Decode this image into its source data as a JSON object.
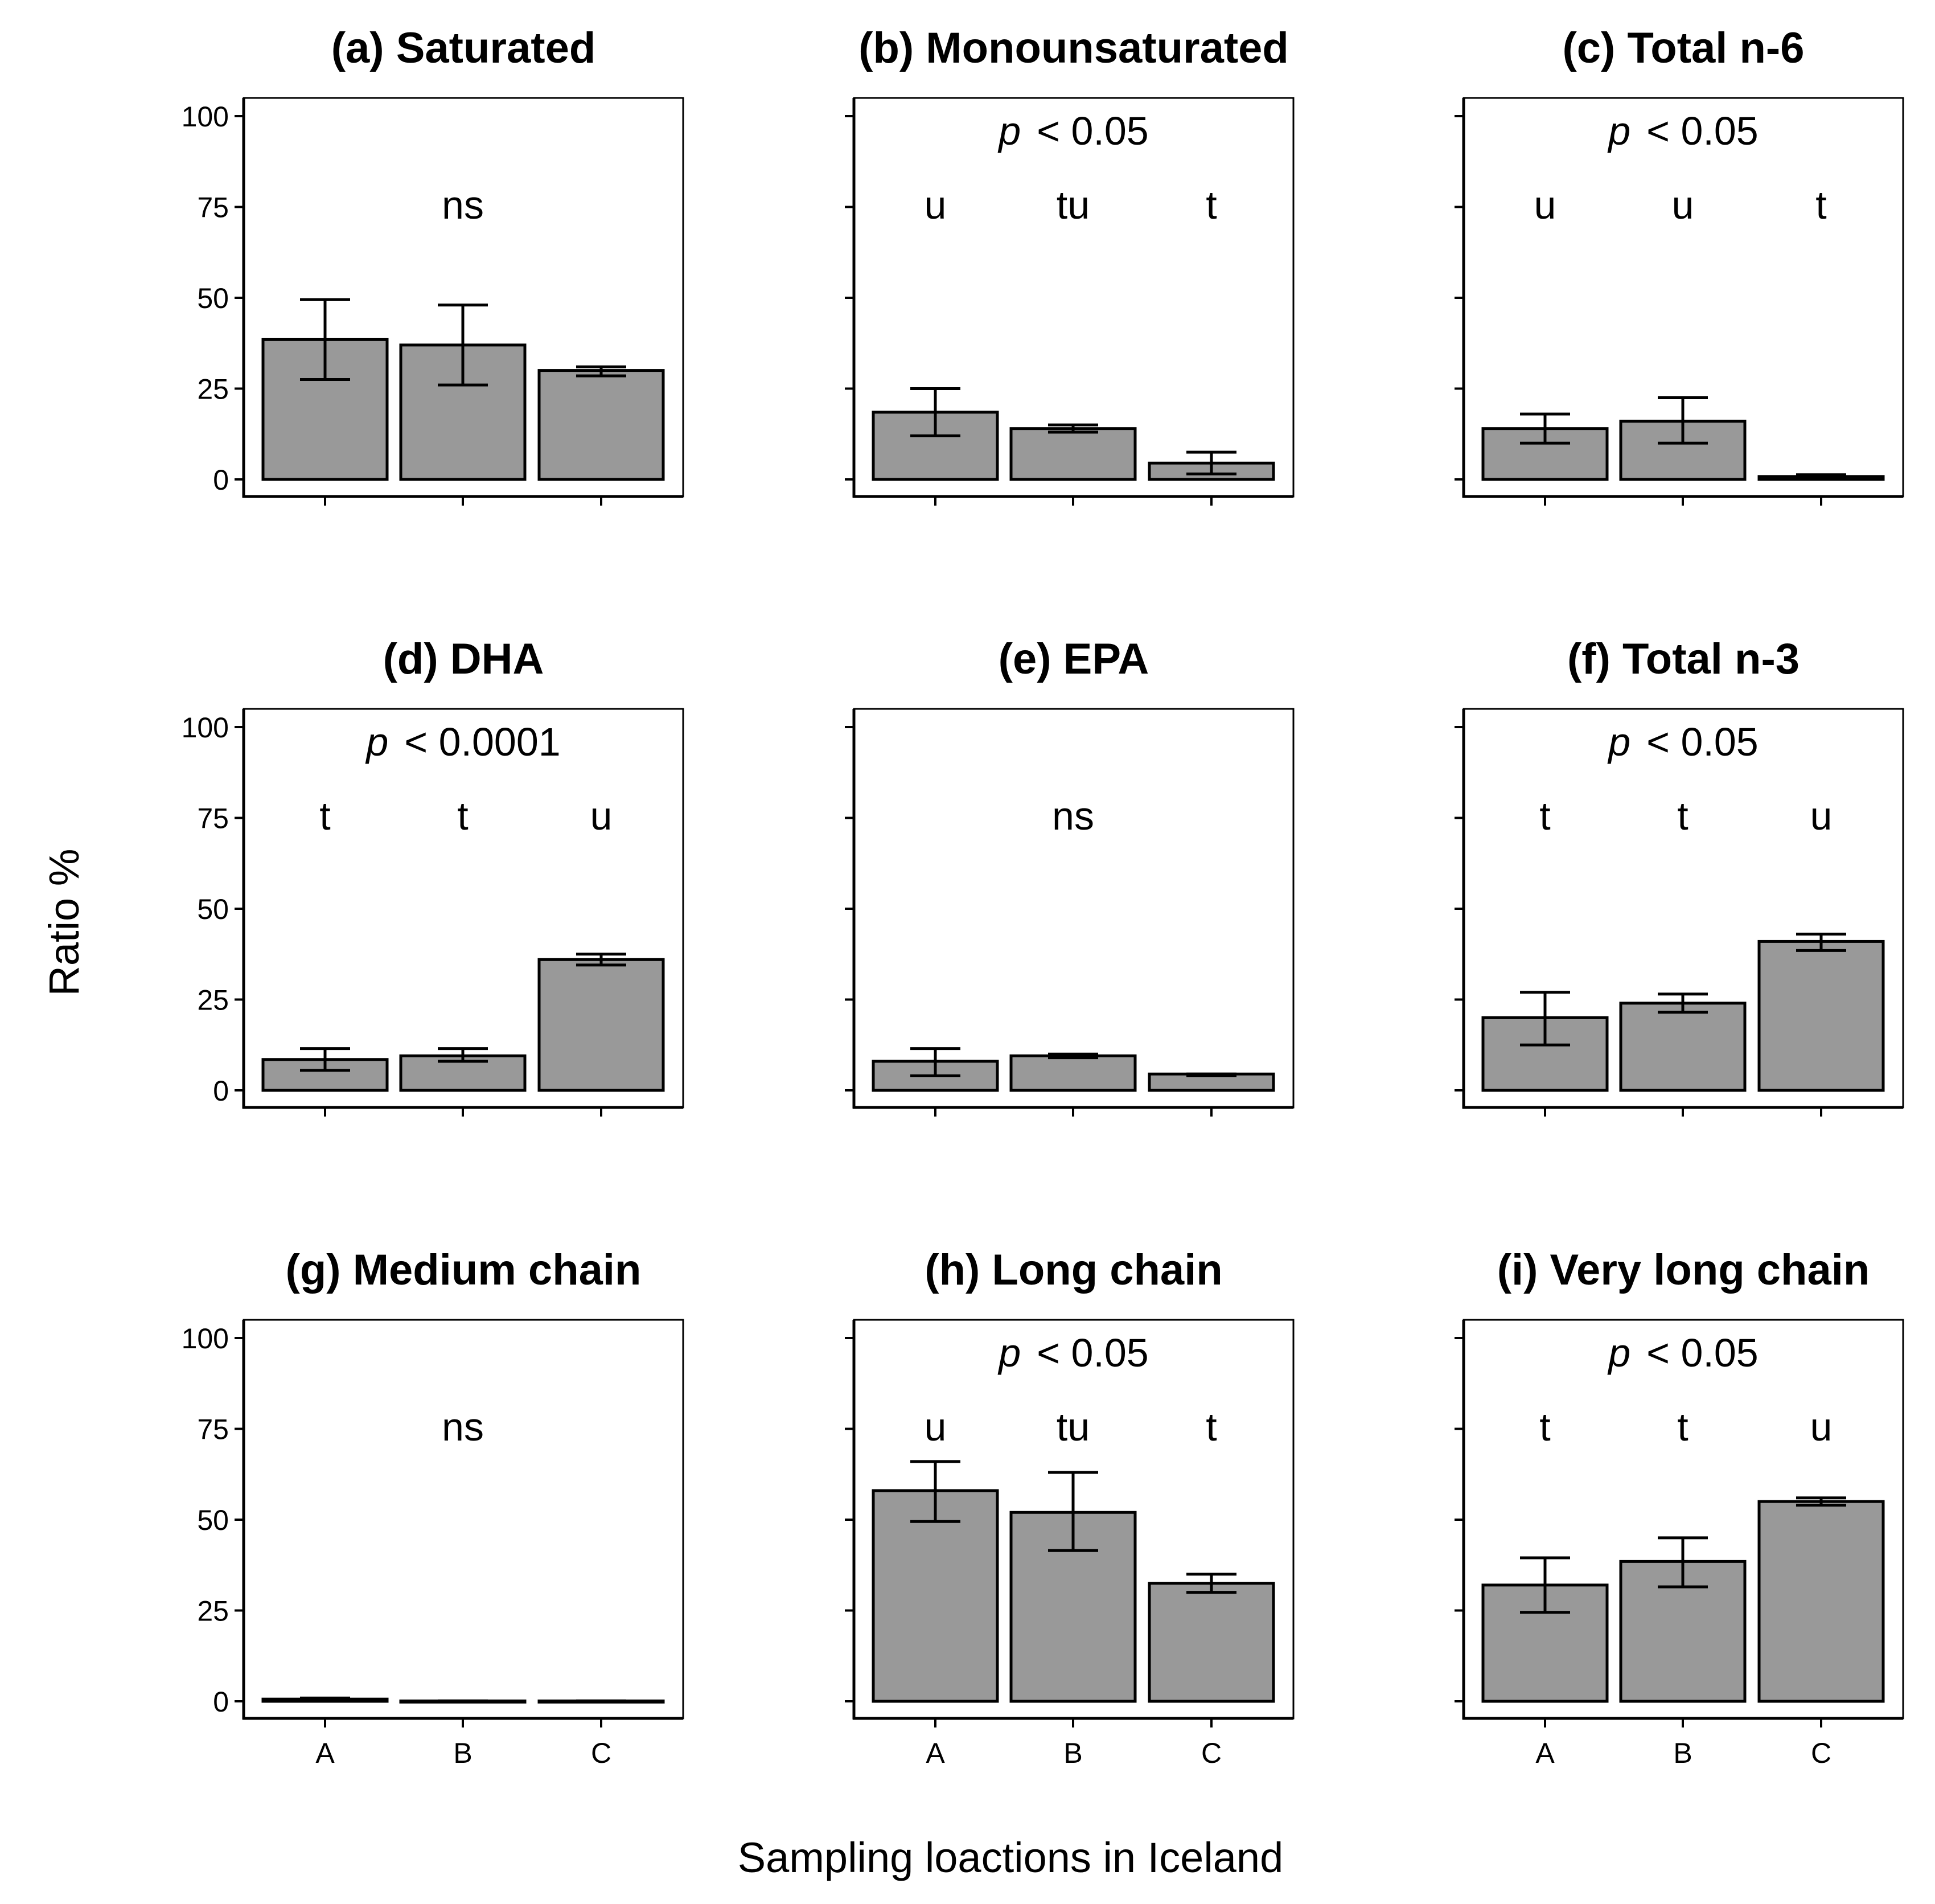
{
  "figure": {
    "ylabel": "Ratio %",
    "xlabel": "Sampling loactions in Iceland"
  },
  "chart_data": [
    {
      "type": "bar",
      "title": "(a) Saturated",
      "categories": [
        "A",
        "B",
        "C"
      ],
      "values": [
        38.5,
        37,
        30
      ],
      "error": [
        [
          27.5,
          49.5
        ],
        [
          26,
          48
        ],
        [
          28.5,
          31
        ]
      ],
      "ylim": [
        0,
        100
      ],
      "yticks": [
        "0",
        "25",
        "50",
        "75",
        "100"
      ],
      "annotation": {
        "p_symbol": "",
        "p_text": ""
      },
      "letters": {
        "type": "ns",
        "text": "ns"
      }
    },
    {
      "type": "bar",
      "title": "(b)  Monounsaturated",
      "categories": [
        "A",
        "B",
        "C"
      ],
      "values": [
        18.5,
        14,
        4.5
      ],
      "error": [
        [
          12,
          25
        ],
        [
          13,
          15
        ],
        [
          1.5,
          7.5
        ]
      ],
      "ylim": [
        0,
        100
      ],
      "yticks": [
        "0",
        "25",
        "50",
        "75",
        "100"
      ],
      "annotation": {
        "p_symbol": "p",
        "p_text": "< 0.05"
      },
      "letters": {
        "type": "groups",
        "items": [
          "u",
          "tu",
          "t"
        ]
      }
    },
    {
      "type": "bar",
      "title": "(c) Total n-6",
      "categories": [
        "A",
        "B",
        "C"
      ],
      "values": [
        14,
        16,
        0.8
      ],
      "error": [
        [
          10,
          18
        ],
        [
          10,
          22.5
        ],
        [
          0.3,
          1.3
        ]
      ],
      "ylim": [
        0,
        100
      ],
      "yticks": [
        "0",
        "25",
        "50",
        "75",
        "100"
      ],
      "annotation": {
        "p_symbol": "p",
        "p_text": "< 0.05"
      },
      "letters": {
        "type": "groups",
        "items": [
          "u",
          "u",
          "t"
        ]
      }
    },
    {
      "type": "bar",
      "title": "(d) DHA",
      "categories": [
        "A",
        "B",
        "C"
      ],
      "values": [
        8.5,
        9.5,
        36
      ],
      "error": [
        [
          5.5,
          11.5
        ],
        [
          8,
          11.5
        ],
        [
          34.5,
          37.5
        ]
      ],
      "ylim": [
        0,
        100
      ],
      "yticks": [
        "0",
        "25",
        "50",
        "75",
        "100"
      ],
      "annotation": {
        "p_symbol": "p",
        "p_text": "< 0.0001"
      },
      "letters": {
        "type": "groups",
        "items": [
          "t",
          "t",
          "u"
        ]
      }
    },
    {
      "type": "bar",
      "title": "(e) EPA",
      "categories": [
        "A",
        "B",
        "C"
      ],
      "values": [
        8,
        9.5,
        4.5
      ],
      "error": [
        [
          4,
          11.5
        ],
        [
          9,
          10
        ],
        [
          4,
          4.5
        ]
      ],
      "ylim": [
        0,
        100
      ],
      "yticks": [
        "0",
        "25",
        "50",
        "75",
        "100"
      ],
      "annotation": {
        "p_symbol": "",
        "p_text": ""
      },
      "letters": {
        "type": "ns",
        "text": "ns"
      }
    },
    {
      "type": "bar",
      "title": "(f) Total n-3",
      "categories": [
        "A",
        "B",
        "C"
      ],
      "values": [
        20,
        24,
        41
      ],
      "error": [
        [
          12.5,
          27
        ],
        [
          21.5,
          26.5
        ],
        [
          38.5,
          43
        ]
      ],
      "ylim": [
        0,
        100
      ],
      "yticks": [
        "0",
        "25",
        "50",
        "75",
        "100"
      ],
      "annotation": {
        "p_symbol": "p",
        "p_text": "< 0.05"
      },
      "letters": {
        "type": "groups",
        "items": [
          "t",
          "t",
          "u"
        ]
      }
    },
    {
      "type": "bar",
      "title": "(g) Medium chain",
      "categories": [
        "A",
        "B",
        "C"
      ],
      "values": [
        0.6,
        0.1,
        0.1
      ],
      "error": [
        [
          0.3,
          0.9
        ],
        [
          0.1,
          0.1
        ],
        [
          0.1,
          0.1
        ]
      ],
      "ylim": [
        0,
        100
      ],
      "yticks": [
        "0",
        "25",
        "50",
        "75",
        "100"
      ],
      "annotation": {
        "p_symbol": "",
        "p_text": ""
      },
      "letters": {
        "type": "ns",
        "text": "ns"
      }
    },
    {
      "type": "bar",
      "title": "(h) Long chain",
      "categories": [
        "A",
        "B",
        "C"
      ],
      "values": [
        58,
        52,
        32.5
      ],
      "error": [
        [
          49.5,
          66
        ],
        [
          41.5,
          63
        ],
        [
          30,
          35
        ]
      ],
      "ylim": [
        0,
        100
      ],
      "yticks": [
        "0",
        "25",
        "50",
        "75",
        "100"
      ],
      "annotation": {
        "p_symbol": "p",
        "p_text": "< 0.05"
      },
      "letters": {
        "type": "groups",
        "items": [
          "u",
          "tu",
          "t"
        ]
      }
    },
    {
      "type": "bar",
      "title": "(i) Very long chain",
      "categories": [
        "A",
        "B",
        "C"
      ],
      "values": [
        32,
        38.5,
        55
      ],
      "error": [
        [
          24.5,
          39.5
        ],
        [
          31.5,
          45
        ],
        [
          54,
          56
        ]
      ],
      "ylim": [
        0,
        100
      ],
      "yticks": [
        "0",
        "25",
        "50",
        "75",
        "100"
      ],
      "annotation": {
        "p_symbol": "p",
        "p_text": "< 0.05"
      },
      "letters": {
        "type": "groups",
        "items": [
          "t",
          "t",
          "u"
        ]
      }
    }
  ]
}
